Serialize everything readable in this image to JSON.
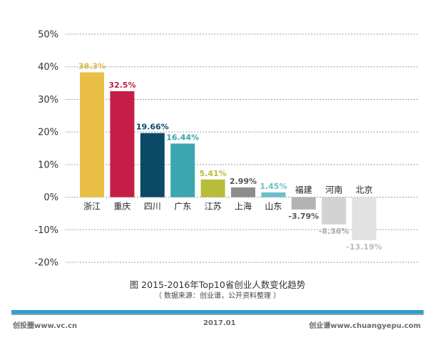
{
  "chart_data": {
    "type": "bar",
    "categories": [
      "浙江",
      "重庆",
      "四川",
      "广东",
      "江苏",
      "上海",
      "山东",
      "福建",
      "河南",
      "北京"
    ],
    "values": [
      38.3,
      32.5,
      19.66,
      16.44,
      5.41,
      2.99,
      1.45,
      -3.79,
      -8.36,
      -13.19
    ],
    "value_labels": [
      "38.3%",
      "32.5%",
      "19.66%",
      "16.44%",
      "5.41%",
      "2.99%",
      "1.45%",
      "-3.79%",
      "-8.36%",
      "-13.19%"
    ],
    "colors": [
      "#e9bf45",
      "#c41e47",
      "#0a4a66",
      "#3aa6ae",
      "#b7bd39",
      "#8d8d8d",
      "#69bec7",
      "#b3b3b3",
      "#d2d2d2",
      "#e2e2e2"
    ],
    "label_colors": [
      "#e3b93c",
      "#c41e47",
      "#0a4a66",
      "#3aa6ae",
      "#b7bd39",
      "#555555",
      "#69bec7",
      "#555555",
      "#aaaaaa",
      "#bbbbbb"
    ],
    "yticks": [
      "-20%",
      "-10%",
      "0%",
      "10%",
      "20%",
      "30%",
      "40%",
      "50%"
    ],
    "ylim": [
      -20,
      50
    ],
    "grid": true,
    "title": "图 2015-2016年Top10省创业人数变化趋势",
    "subtitle": "（ 数据来源：创业谱，公开资料整理 ）"
  },
  "footer": {
    "left": "创投圈www.vc.cn",
    "middle": "2017.01",
    "right": "创业谱www.chuangyepu.com"
  }
}
